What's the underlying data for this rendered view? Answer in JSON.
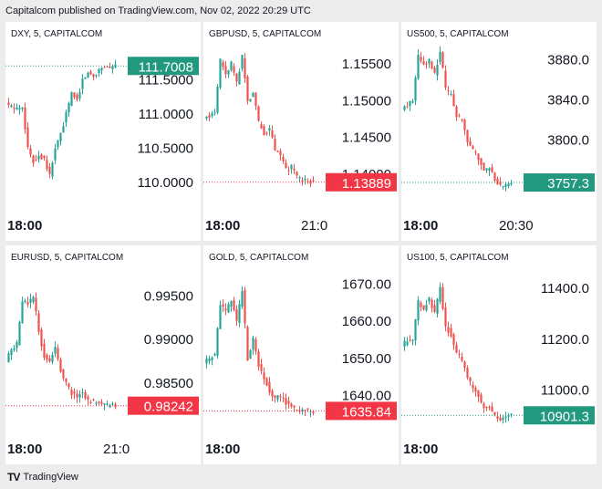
{
  "header": {
    "text": "Capitalcom published on TradingView.com, Nov 02, 2022 20:29 UTC"
  },
  "footer": {
    "logo": "TV",
    "brand": "TradingView"
  },
  "colors": {
    "up": "#26a69a",
    "down": "#ef5350",
    "up_badge": "#22987f",
    "down_badge": "#f23645"
  },
  "chart_data": [
    {
      "type": "candlestick",
      "title": "DXY, 5, CAPITALCOM",
      "ylim": [
        109.75,
        112.05
      ],
      "yticks": [
        "111.5000",
        "111.0000",
        "110.5000",
        "110.0000"
      ],
      "ytick_values": [
        111.5,
        111.0,
        110.5,
        110.0
      ],
      "xticks": [
        "18:00"
      ],
      "last_price": "111.7008",
      "last_value": 111.7008,
      "last_direction": "up",
      "path": [
        111.15,
        111.1,
        111.08,
        111.12,
        110.5,
        110.3,
        110.4,
        110.35,
        110.1,
        110.5,
        110.7,
        111.0,
        111.3,
        111.2,
        111.5,
        111.6,
        111.55,
        111.65,
        111.7,
        111.68,
        111.7
      ]
    },
    {
      "type": "candlestick",
      "title": "GBPUSD, 5, CAPITALCOM",
      "ylim": [
        1.1365,
        1.158
      ],
      "yticks": [
        "1.15500",
        "1.15000",
        "1.14500",
        "1.14000"
      ],
      "ytick_values": [
        1.155,
        1.15,
        1.145,
        1.14
      ],
      "xticks": [
        "18:00",
        "21:0"
      ],
      "last_price": "1.13889",
      "last_value": 1.13889,
      "last_direction": "down",
      "path": [
        1.1475,
        1.148,
        1.1485,
        1.1555,
        1.1535,
        1.155,
        1.1525,
        1.156,
        1.15,
        1.151,
        1.147,
        1.1455,
        1.146,
        1.1435,
        1.1425,
        1.1405,
        1.141,
        1.1395,
        1.1392,
        1.139,
        1.1389
      ]
    },
    {
      "type": "candlestick",
      "title": "US500, 5, CAPITALCOM",
      "ylim": [
        3740,
        3898
      ],
      "yticks": [
        "3880.0",
        "3840.0",
        "3800.0"
      ],
      "ytick_values": [
        3880,
        3840,
        3800
      ],
      "xticks": [
        "18:00",
        "20:30"
      ],
      "last_price": "3757.3",
      "last_value": 3757.3,
      "last_direction": "up",
      "path": [
        3830,
        3835,
        3840,
        3885,
        3875,
        3880,
        3865,
        3890,
        3850,
        3845,
        3825,
        3820,
        3800,
        3790,
        3780,
        3770,
        3772,
        3760,
        3753,
        3755,
        3757.3
      ]
    },
    {
      "type": "candlestick",
      "title": "EURUSD, 5, CAPITALCOM",
      "ylim": [
        0.9804,
        0.9985
      ],
      "yticks": [
        "0.99500",
        "0.99000",
        "0.98500"
      ],
      "ytick_values": [
        0.995,
        0.99,
        0.985
      ],
      "xticks": [
        "18:00",
        "21:0"
      ],
      "last_price": "0.98242",
      "last_value": 0.98242,
      "last_direction": "down",
      "path": [
        0.9875,
        0.989,
        0.9895,
        0.9945,
        0.994,
        0.995,
        0.991,
        0.988,
        0.9875,
        0.989,
        0.9865,
        0.985,
        0.9838,
        0.9835,
        0.984,
        0.983,
        0.9828,
        0.9826,
        0.9825,
        0.9824,
        0.9824
      ]
    },
    {
      "type": "candlestick",
      "title": "GOLD, 5, CAPITALCOM",
      "ylim": [
        1632.5,
        1675
      ],
      "yticks": [
        "1670.00",
        "1660.00",
        "1650.00",
        "1640.00"
      ],
      "ytick_values": [
        1670,
        1660,
        1650,
        1640
      ],
      "xticks": [
        "18:00"
      ],
      "last_price": "1635.84",
      "last_value": 1635.84,
      "last_direction": "down",
      "path": [
        1649,
        1650,
        1651,
        1665,
        1663,
        1666,
        1660,
        1668,
        1650,
        1655,
        1648,
        1645,
        1641,
        1639,
        1640,
        1638,
        1637,
        1636.5,
        1636,
        1635.9,
        1635.84
      ]
    },
    {
      "type": "candlestick",
      "title": "US100, 5, CAPITALCOM",
      "ylim": [
        10870,
        11490
      ],
      "yticks": [
        "11400.0",
        "11200.0",
        "11000.0"
      ],
      "ytick_values": [
        11400,
        11200,
        11000
      ],
      "xticks": [
        "18:00"
      ],
      "last_price": "10901.3",
      "last_value": 10901.3,
      "last_direction": "up",
      "path": [
        11180,
        11190,
        11200,
        11350,
        11320,
        11360,
        11300,
        11400,
        11250,
        11220,
        11150,
        11120,
        11050,
        11010,
        10980,
        10930,
        10940,
        10900,
        10880,
        10890,
        10901.3
      ]
    }
  ]
}
